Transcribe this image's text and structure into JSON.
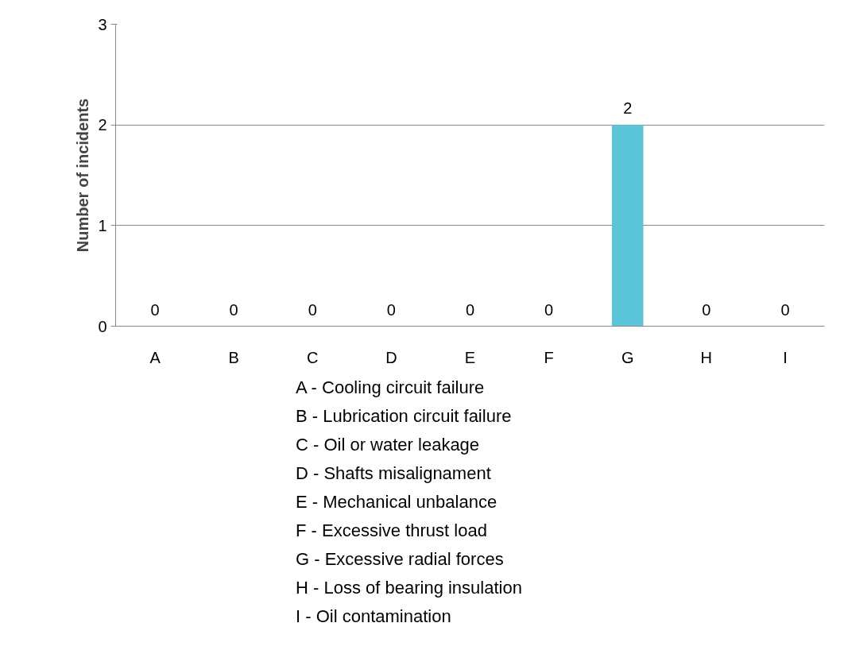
{
  "chart_data": {
    "type": "bar",
    "ylabel": "Number of incidents",
    "categories": [
      "A",
      "B",
      "C",
      "D",
      "E",
      "F",
      "G",
      "H",
      "I"
    ],
    "values": [
      0,
      0,
      0,
      0,
      0,
      0,
      2,
      0,
      0
    ],
    "color": "#5bc5da",
    "ylim": [
      0,
      3
    ],
    "yticks": [
      0,
      1,
      2,
      3
    ],
    "grid": "y",
    "data_labels": true,
    "annotations": [
      "A - Cooling circuit failure",
      "B - Lubrication circuit failure",
      "C - Oil or water leakage",
      "D - Shafts misalignament",
      "E - Mechanical unbalance",
      "F - Excessive thrust load",
      "G - Excessive radial forces",
      "H - Loss of bearing insulation",
      "I - Oil contamination"
    ]
  }
}
